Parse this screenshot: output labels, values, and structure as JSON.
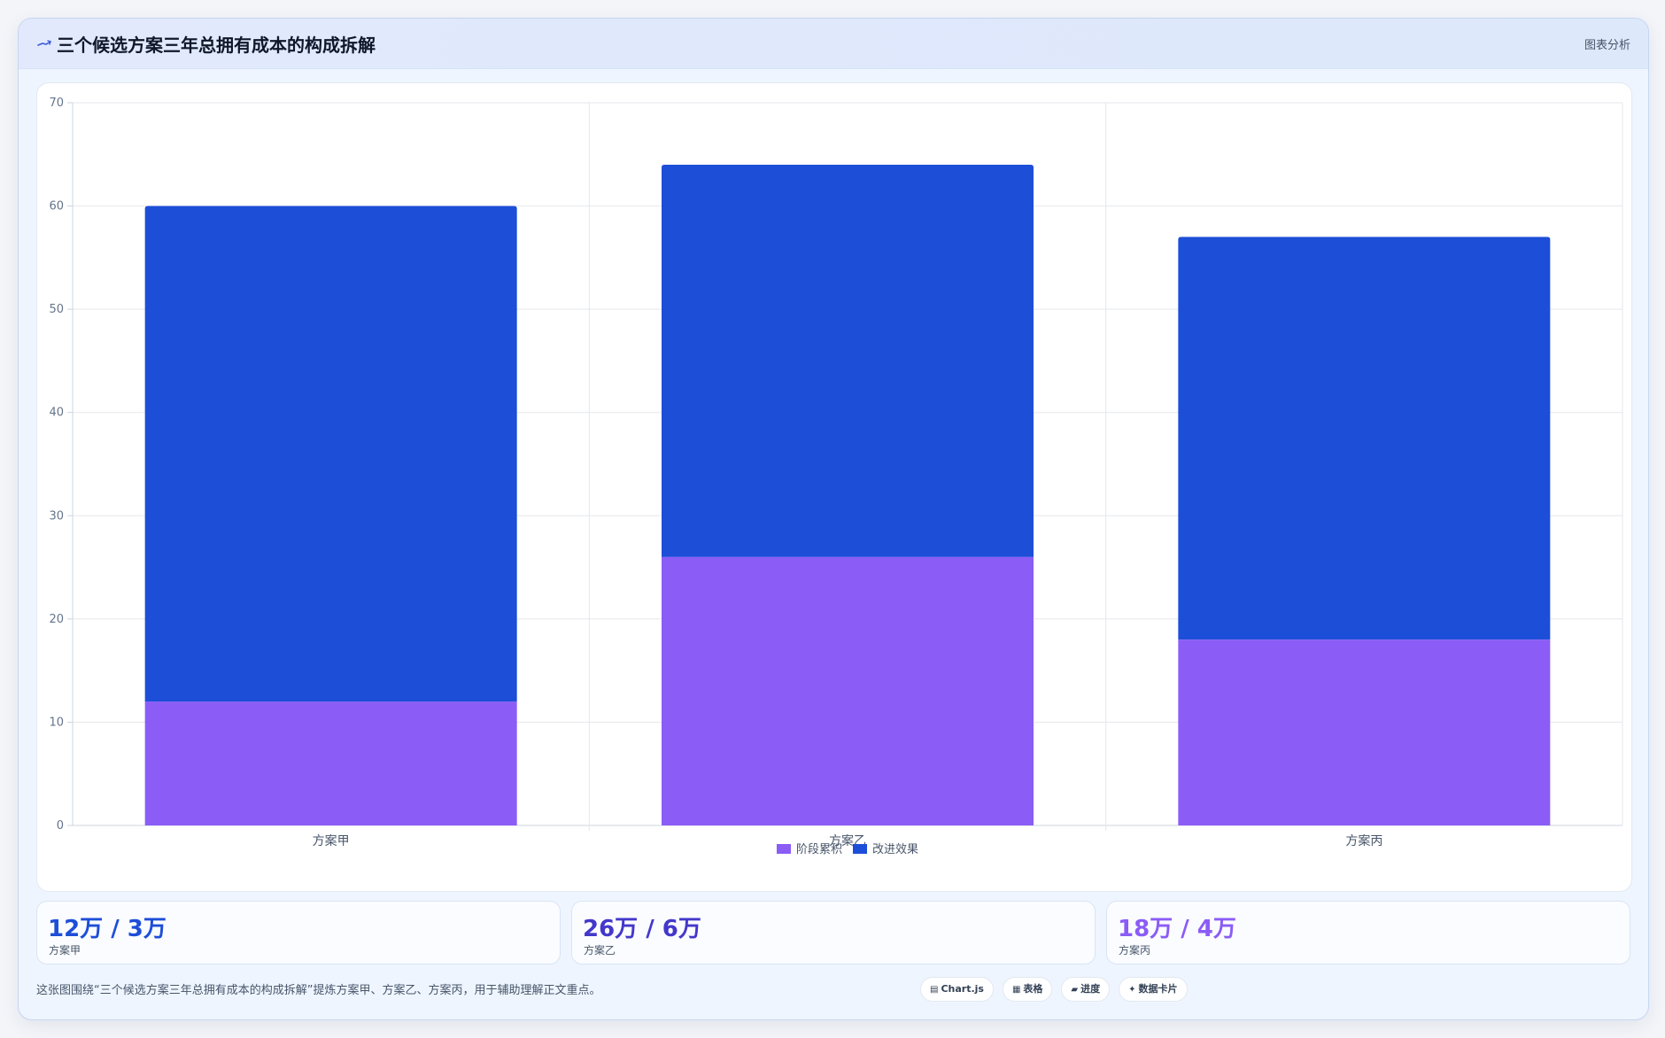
{
  "header": {
    "icon": "chart-icon",
    "title": "三个候选方案三年总拥有成本的构成拆解",
    "tag": "图表分析"
  },
  "colors": {
    "series_1": "#8b5cf6",
    "series_2": "#1d4ed8",
    "stat_1": "#1d4ed8",
    "stat_2": "#4338ca",
    "stat_3": "#8b5cf6"
  },
  "chart_data": {
    "type": "bar",
    "stacked": true,
    "categories": [
      "方案甲",
      "方案乙",
      "方案丙"
    ],
    "series": [
      {
        "name": "阶段累积",
        "values": [
          12,
          26,
          18
        ]
      },
      {
        "name": "改进效果",
        "values": [
          48,
          38,
          39
        ]
      }
    ],
    "ylim": [
      0,
      70
    ],
    "yticks": [
      0,
      10,
      20,
      30,
      40,
      50,
      60,
      70
    ],
    "grid": true,
    "legend_position": "bottom"
  },
  "stats": [
    {
      "value": "12万 / 3万",
      "label": "方案甲"
    },
    {
      "value": "26万 / 6万",
      "label": "方案乙"
    },
    {
      "value": "18万 / 4万",
      "label": "方案丙"
    }
  ],
  "footer": {
    "note": "这张图围绕“三个候选方案三年总拥有成本的构成拆解”提炼方案甲、方案乙、方案丙，用于辅助理解正文重点。",
    "chips": [
      {
        "icon": "chart-js-icon",
        "glyph": "▤",
        "label": "Chart.js"
      },
      {
        "icon": "table-icon",
        "glyph": "▦",
        "label": "表格"
      },
      {
        "icon": "progress-icon",
        "glyph": "▰",
        "label": "进度"
      },
      {
        "icon": "data-card-icon",
        "glyph": "✦",
        "label": "数据卡片"
      }
    ]
  }
}
